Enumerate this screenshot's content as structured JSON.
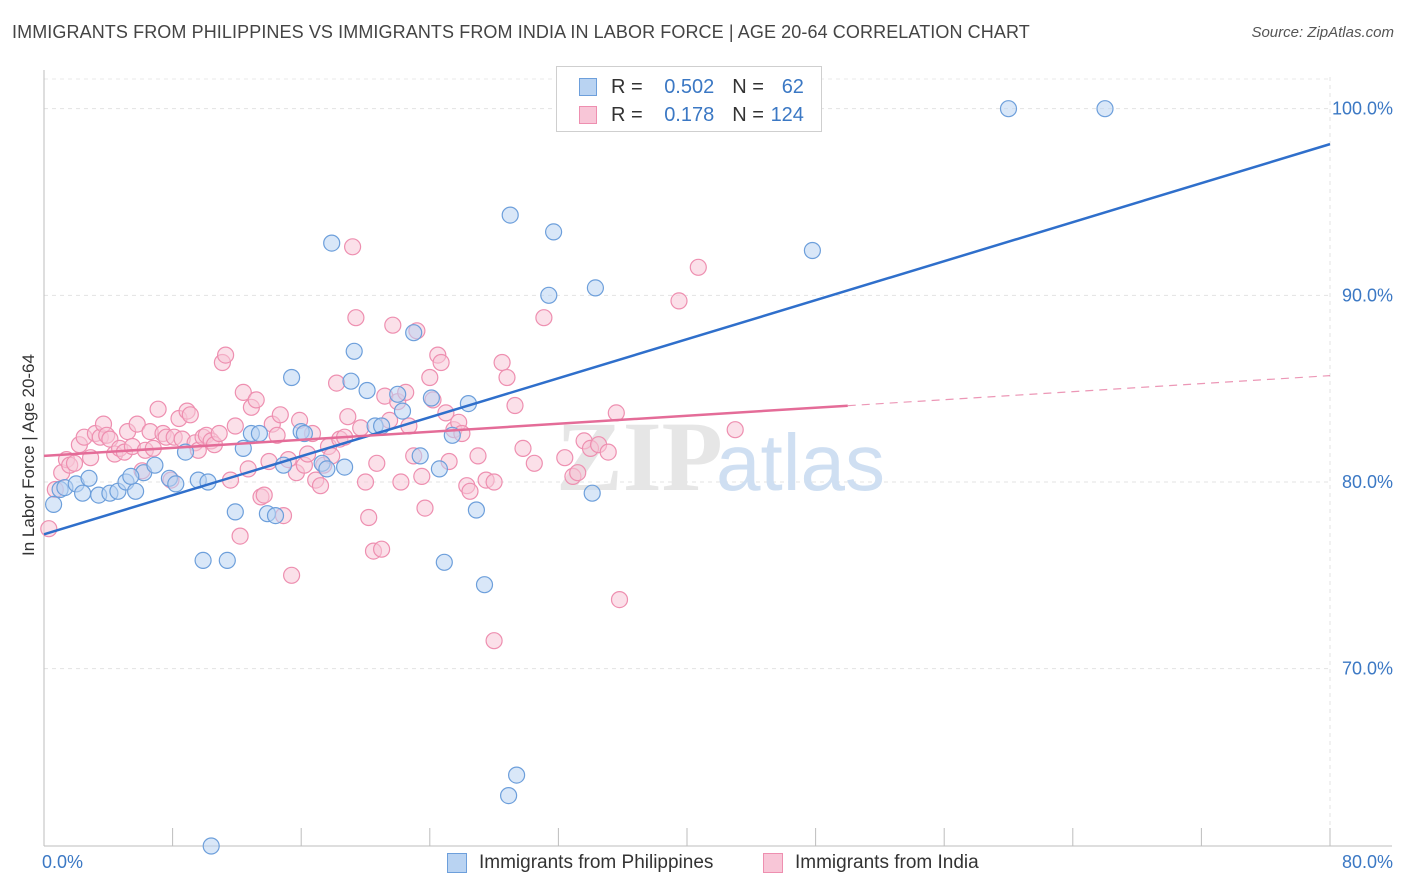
{
  "header": {
    "title": "IMMIGRANTS FROM PHILIPPINES VS IMMIGRANTS FROM INDIA IN LABOR FORCE | AGE 20-64 CORRELATION CHART",
    "source": "Source: ZipAtlas.com"
  },
  "watermark": {
    "zip": "ZIP",
    "atlas": "atlas"
  },
  "legend": {
    "rows": [
      {
        "r_label": "R =",
        "r_value": "0.502",
        "n_label": "N =",
        "n_value": "62"
      },
      {
        "r_label": "R =",
        "r_value": "0.178",
        "n_label": "N =",
        "n_value": "124"
      }
    ]
  },
  "bottom_legend": [
    "Immigrants from Philippines",
    "Immigrants from India"
  ],
  "chart_data": {
    "type": "scatter",
    "ylabel": "In Labor Force | Age 20-64",
    "xlim": [
      0,
      80
    ],
    "ylim": [
      60.5,
      102.5
    ],
    "x_tick_labels": [
      "0.0%",
      "80.0%"
    ],
    "y_ticks": [
      {
        "value": 100,
        "label": "100.0%"
      },
      {
        "value": 90,
        "label": "90.0%"
      },
      {
        "value": 80,
        "label": "80.0%"
      },
      {
        "value": 70,
        "label": "70.0%"
      }
    ],
    "grid": true,
    "series": [
      {
        "name": "Immigrants from Philippines",
        "color": "#6d9fdb",
        "fill": "#b9d3f2",
        "trend": {
          "x": [
            0,
            80
          ],
          "y": [
            77.2,
            98.1
          ],
          "dashed_from": null
        },
        "points": [
          [
            0.6,
            78.8
          ],
          [
            1.0,
            79.6
          ],
          [
            1.3,
            79.7
          ],
          [
            2.0,
            79.9
          ],
          [
            2.4,
            79.4
          ],
          [
            2.8,
            80.2
          ],
          [
            3.4,
            79.3
          ],
          [
            4.1,
            79.4
          ],
          [
            4.6,
            79.5
          ],
          [
            5.1,
            80.0
          ],
          [
            5.7,
            79.5
          ],
          [
            6.2,
            80.5
          ],
          [
            6.9,
            80.9
          ],
          [
            7.8,
            80.2
          ],
          [
            8.2,
            79.9
          ],
          [
            8.8,
            81.6
          ],
          [
            9.6,
            80.1
          ],
          [
            10.2,
            80.0
          ],
          [
            9.9,
            75.8
          ],
          [
            11.4,
            75.8
          ],
          [
            11.9,
            78.4
          ],
          [
            12.4,
            81.8
          ],
          [
            12.9,
            82.6
          ],
          [
            13.4,
            82.6
          ],
          [
            13.9,
            78.3
          ],
          [
            14.4,
            78.2
          ],
          [
            14.9,
            80.9
          ],
          [
            15.4,
            85.6
          ],
          [
            16.0,
            82.7
          ],
          [
            16.2,
            82.6
          ],
          [
            17.3,
            81.0
          ],
          [
            17.6,
            80.7
          ],
          [
            17.9,
            92.8
          ],
          [
            18.7,
            80.8
          ],
          [
            19.1,
            85.4
          ],
          [
            19.3,
            87.0
          ],
          [
            20.1,
            84.9
          ],
          [
            20.6,
            83.0
          ],
          [
            21.0,
            83.0
          ],
          [
            22.0,
            84.7
          ],
          [
            22.3,
            83.8
          ],
          [
            23.0,
            88.0
          ],
          [
            23.4,
            81.4
          ],
          [
            24.1,
            84.5
          ],
          [
            24.6,
            80.7
          ],
          [
            24.9,
            75.7
          ],
          [
            25.4,
            82.5
          ],
          [
            26.4,
            84.2
          ],
          [
            26.9,
            78.5
          ],
          [
            27.4,
            74.5
          ],
          [
            29.0,
            94.3
          ],
          [
            29.4,
            64.3
          ],
          [
            28.9,
            63.2
          ],
          [
            31.4,
            90.0
          ],
          [
            31.7,
            93.4
          ],
          [
            34.1,
            79.4
          ],
          [
            34.3,
            90.4
          ],
          [
            47.8,
            92.4
          ],
          [
            60.0,
            100.0
          ],
          [
            66.0,
            100.0
          ],
          [
            10.4,
            60.5
          ],
          [
            5.4,
            80.3
          ]
        ]
      },
      {
        "name": "Immigrants from India",
        "color": "#ee8fb0",
        "fill": "#f8c6d7",
        "trend": {
          "x": [
            0,
            80
          ],
          "y": [
            81.4,
            85.7
          ],
          "dashed_from": 50
        },
        "points": [
          [
            0.3,
            77.5
          ],
          [
            0.7,
            79.6
          ],
          [
            1.1,
            80.5
          ],
          [
            1.4,
            81.2
          ],
          [
            1.6,
            80.9
          ],
          [
            1.9,
            81.0
          ],
          [
            2.2,
            82.0
          ],
          [
            2.5,
            82.4
          ],
          [
            2.9,
            81.3
          ],
          [
            3.2,
            82.6
          ],
          [
            3.5,
            82.4
          ],
          [
            3.7,
            83.1
          ],
          [
            3.9,
            82.5
          ],
          [
            4.1,
            82.3
          ],
          [
            4.4,
            81.5
          ],
          [
            4.7,
            81.8
          ],
          [
            5.0,
            81.6
          ],
          [
            5.2,
            82.7
          ],
          [
            5.5,
            81.9
          ],
          [
            5.8,
            83.1
          ],
          [
            6.1,
            80.6
          ],
          [
            6.3,
            81.7
          ],
          [
            6.6,
            82.7
          ],
          [
            6.8,
            81.8
          ],
          [
            7.1,
            83.9
          ],
          [
            7.4,
            82.6
          ],
          [
            7.6,
            82.4
          ],
          [
            7.9,
            80.1
          ],
          [
            8.1,
            82.4
          ],
          [
            8.4,
            83.4
          ],
          [
            8.6,
            82.3
          ],
          [
            8.9,
            83.8
          ],
          [
            9.1,
            83.6
          ],
          [
            9.4,
            82.1
          ],
          [
            9.6,
            81.7
          ],
          [
            9.9,
            82.4
          ],
          [
            10.1,
            82.5
          ],
          [
            10.4,
            82.2
          ],
          [
            10.6,
            82.0
          ],
          [
            10.9,
            82.6
          ],
          [
            11.1,
            86.4
          ],
          [
            11.3,
            86.8
          ],
          [
            11.6,
            80.1
          ],
          [
            11.9,
            83.0
          ],
          [
            12.2,
            77.1
          ],
          [
            12.4,
            84.8
          ],
          [
            12.7,
            80.7
          ],
          [
            12.9,
            84.0
          ],
          [
            13.2,
            84.4
          ],
          [
            13.5,
            79.2
          ],
          [
            13.7,
            79.3
          ],
          [
            14.0,
            81.1
          ],
          [
            14.2,
            83.1
          ],
          [
            14.5,
            82.5
          ],
          [
            14.7,
            83.6
          ],
          [
            14.9,
            78.2
          ],
          [
            15.2,
            81.2
          ],
          [
            15.4,
            75.0
          ],
          [
            15.7,
            80.5
          ],
          [
            15.9,
            83.3
          ],
          [
            16.2,
            80.9
          ],
          [
            16.4,
            81.5
          ],
          [
            16.7,
            82.6
          ],
          [
            16.9,
            80.1
          ],
          [
            17.2,
            79.8
          ],
          [
            17.4,
            80.9
          ],
          [
            17.7,
            81.9
          ],
          [
            17.9,
            81.4
          ],
          [
            18.2,
            85.3
          ],
          [
            18.4,
            82.3
          ],
          [
            18.7,
            82.4
          ],
          [
            18.9,
            83.5
          ],
          [
            19.2,
            92.6
          ],
          [
            19.4,
            88.8
          ],
          [
            19.7,
            82.9
          ],
          [
            20.0,
            80.0
          ],
          [
            20.2,
            78.1
          ],
          [
            20.5,
            76.3
          ],
          [
            20.7,
            81.0
          ],
          [
            21.0,
            76.4
          ],
          [
            21.2,
            84.6
          ],
          [
            21.5,
            83.3
          ],
          [
            21.7,
            88.4
          ],
          [
            22.0,
            84.3
          ],
          [
            22.2,
            80.0
          ],
          [
            22.5,
            84.8
          ],
          [
            22.7,
            83.0
          ],
          [
            23.0,
            81.4
          ],
          [
            23.2,
            88.1
          ],
          [
            23.5,
            80.3
          ],
          [
            23.7,
            78.6
          ],
          [
            24.0,
            85.6
          ],
          [
            24.2,
            84.4
          ],
          [
            24.5,
            86.8
          ],
          [
            24.7,
            86.4
          ],
          [
            25.0,
            83.7
          ],
          [
            25.2,
            81.1
          ],
          [
            25.5,
            82.8
          ],
          [
            25.8,
            83.2
          ],
          [
            26.0,
            82.6
          ],
          [
            26.3,
            79.8
          ],
          [
            26.5,
            79.5
          ],
          [
            27.0,
            81.4
          ],
          [
            27.5,
            80.1
          ],
          [
            28.0,
            71.5
          ],
          [
            28.5,
            86.4
          ],
          [
            28.8,
            85.6
          ],
          [
            29.3,
            84.1
          ],
          [
            29.8,
            81.8
          ],
          [
            30.5,
            81.0
          ],
          [
            31.1,
            88.8
          ],
          [
            32.4,
            81.3
          ],
          [
            32.9,
            80.3
          ],
          [
            33.2,
            80.5
          ],
          [
            33.6,
            82.2
          ],
          [
            34.0,
            81.8
          ],
          [
            34.5,
            82.0
          ],
          [
            35.1,
            81.6
          ],
          [
            35.6,
            83.7
          ],
          [
            35.8,
            73.7
          ],
          [
            39.5,
            89.7
          ],
          [
            40.7,
            91.5
          ],
          [
            43.0,
            82.8
          ],
          [
            28.0,
            80.0
          ]
        ]
      }
    ]
  }
}
